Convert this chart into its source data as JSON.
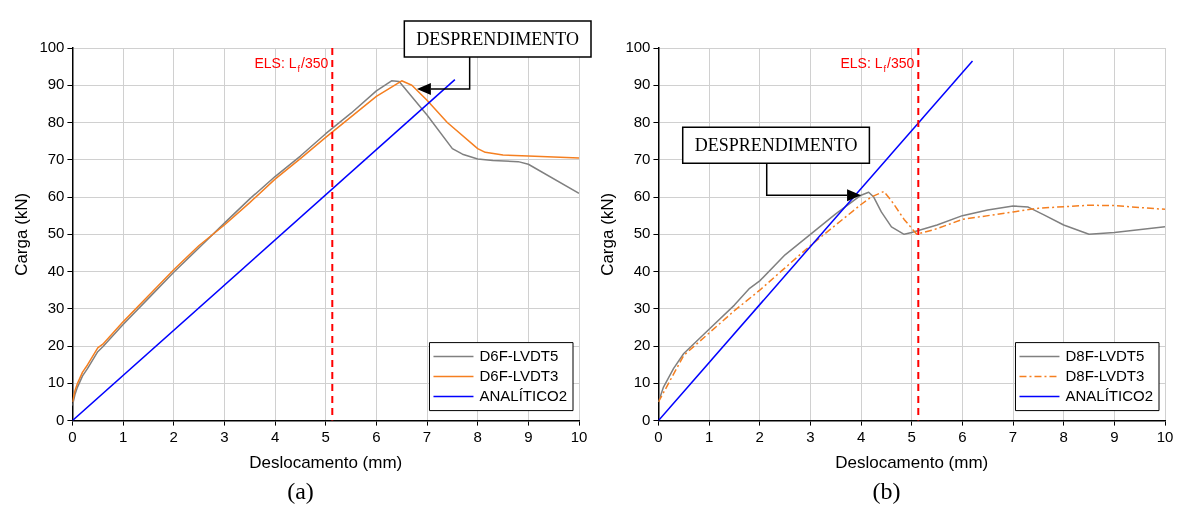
{
  "chart_data": [
    {
      "type": "line",
      "xlabel": "Deslocamento (mm)",
      "ylabel": "Carga (kN)",
      "xlim": [
        0,
        10
      ],
      "ylim": [
        0,
        100
      ],
      "xticks": [
        0,
        1,
        2,
        3,
        4,
        5,
        6,
        7,
        8,
        9,
        10
      ],
      "yticks": [
        0,
        10,
        20,
        30,
        40,
        50,
        60,
        70,
        80,
        90,
        100
      ],
      "grid": true,
      "legend": "bottom right",
      "marker": "none",
      "series": [
        {
          "name": "D6F-LVDT5",
          "color": "#808080",
          "line_style": "solid",
          "x": [
            0,
            0.05,
            0.1,
            0.2,
            0.3,
            0.5,
            0.6,
            1,
            1.5,
            2,
            2.5,
            3,
            3.5,
            4,
            4.5,
            5,
            5.5,
            6,
            6.3,
            6.45,
            7,
            7.5,
            7.7,
            8,
            8.3,
            8.8,
            9,
            10
          ],
          "values": [
            4,
            7,
            9,
            12,
            14,
            18.5,
            19.8,
            25.8,
            32.8,
            39.8,
            46.4,
            53,
            59.5,
            65.5,
            71,
            77,
            82.5,
            88.5,
            91.2,
            91,
            82,
            73,
            71.5,
            70.2,
            69.8,
            69.5,
            68.8,
            61
          ]
        },
        {
          "name": "D6F-LVDT3",
          "color": "#f57f20",
          "line_style": "solid",
          "x": [
            0,
            0.05,
            0.1,
            0.2,
            0.3,
            0.5,
            0.6,
            1,
            1.5,
            2,
            2.5,
            3,
            3.5,
            4,
            4.5,
            5,
            5.5,
            6,
            6.3,
            6.5,
            6.7,
            7,
            7.4,
            8,
            8.15,
            8.5,
            9,
            10
          ],
          "values": [
            5,
            8,
            10,
            13,
            15,
            19.5,
            20.5,
            26.5,
            33.5,
            40.5,
            47,
            52.5,
            58.5,
            64.8,
            70.3,
            76,
            81.5,
            87,
            89.5,
            91.2,
            90,
            86,
            80,
            73,
            72,
            71.3,
            71,
            70.5
          ]
        },
        {
          "name": "ANALÍTICO2",
          "color": "#0000ff",
          "line_style": "solid",
          "x": [
            0,
            7.55
          ],
          "values": [
            0,
            91.5
          ]
        }
      ],
      "ref_lines": [
        {
          "axis": "x",
          "value": 5.13,
          "label": "ELS: L$_{f}$/350",
          "color": "#ff0000",
          "line_style": "dashed"
        }
      ],
      "annotations": [
        {
          "text": "DESPRENDIMENTO",
          "x": 6.8,
          "y": 89
        },
        "(a)"
      ]
    },
    {
      "type": "line",
      "xlabel": "Deslocamento (mm)",
      "ylabel": "Carga (kN)",
      "xlim": [
        0,
        10
      ],
      "ylim": [
        0,
        100
      ],
      "xticks": [
        0,
        1,
        2,
        3,
        4,
        5,
        6,
        7,
        8,
        9,
        10
      ],
      "yticks": [
        0,
        10,
        20,
        30,
        40,
        50,
        60,
        70,
        80,
        90,
        100
      ],
      "grid": true,
      "legend": "bottom right",
      "marker": "none",
      "series": [
        {
          "name": "D8F-LVDT5",
          "color": "#808080",
          "line_style": "solid",
          "x": [
            0,
            0.1,
            0.3,
            0.5,
            1,
            1.5,
            1.8,
            2,
            2.5,
            3,
            3.5,
            3.8,
            4,
            4.15,
            4.25,
            4.4,
            4.6,
            4.85,
            5,
            5.5,
            6,
            6.5,
            7,
            7.3,
            7.6,
            8,
            8.5,
            9,
            10
          ],
          "values": [
            5,
            9,
            14,
            18,
            24.5,
            31,
            35.5,
            37.5,
            44.5,
            50,
            55.5,
            58.5,
            60.5,
            61.3,
            60,
            56,
            52,
            50,
            50.5,
            52.5,
            55,
            56.5,
            57.6,
            57.3,
            55.3,
            52.5,
            50,
            50.5,
            52
          ]
        },
        {
          "name": "D8F-LVDT3",
          "color": "#f57f20",
          "line_style": "dashed",
          "x": [
            0,
            0.5,
            1,
            1.5,
            2,
            2.5,
            3,
            3.5,
            4,
            4.2,
            4.45,
            4.6,
            4.85,
            5.1,
            5.5,
            6,
            7,
            7.5,
            8.5,
            9,
            10
          ],
          "values": [
            5,
            17.5,
            23.5,
            29.5,
            35,
            41,
            47,
            52.5,
            58,
            60,
            61.5,
            59,
            54,
            50,
            51.5,
            54,
            56,
            57,
            57.8,
            57.7,
            56.7
          ]
        },
        {
          "name": "ANALÍTICO2",
          "color": "#0000ff",
          "line_style": "solid",
          "x": [
            0,
            6.2
          ],
          "values": [
            0,
            96.5
          ]
        }
      ],
      "ref_lines": [
        {
          "axis": "x",
          "value": 5.13,
          "label": "ELS: L$_{f}$/350",
          "color": "#ff0000",
          "line_style": "dashed"
        }
      ],
      "annotations": [
        {
          "text": "DESPRENDIMENTO",
          "x": 4,
          "y": 60.5
        },
        "(b)"
      ]
    }
  ]
}
